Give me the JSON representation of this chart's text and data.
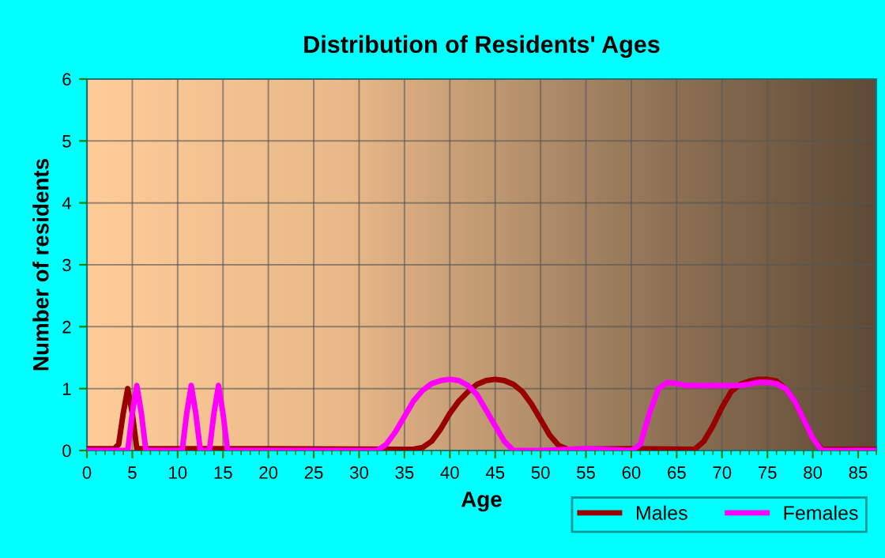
{
  "chart_data": {
    "type": "line",
    "title": "Distribution of Residents' Ages",
    "xlabel": "Age",
    "ylabel": "Number of residents",
    "xlim": [
      0,
      87
    ],
    "xticks": [
      0,
      5,
      10,
      15,
      20,
      25,
      30,
      35,
      40,
      45,
      50,
      55,
      60,
      65,
      70,
      75,
      80,
      85
    ],
    "ylim": [
      0,
      6
    ],
    "yticks": [
      0,
      1,
      2,
      3,
      4,
      5,
      6
    ],
    "grid": true,
    "legend": "bottom right",
    "series": [
      {
        "name": "Males",
        "color": "#990000",
        "x": [
          0,
          3,
          3.5,
          4,
          4.5,
          5,
          5.5,
          6,
          20,
          36,
          37,
          38,
          39,
          40,
          41,
          42,
          43,
          44,
          45,
          46,
          47,
          48,
          49,
          50,
          51,
          52,
          53,
          60,
          67,
          68,
          69,
          70,
          71,
          72,
          73,
          74,
          75,
          76,
          77,
          78,
          79,
          80,
          81,
          87
        ],
        "values": [
          0.03,
          0.03,
          0.1,
          0.6,
          1.0,
          0.6,
          0.03,
          0.03,
          0.03,
          0.02,
          0.05,
          0.15,
          0.35,
          0.6,
          0.8,
          0.95,
          1.07,
          1.13,
          1.15,
          1.13,
          1.07,
          0.95,
          0.75,
          0.5,
          0.25,
          0.08,
          0.02,
          0.03,
          0.02,
          0.15,
          0.4,
          0.7,
          0.95,
          1.07,
          1.12,
          1.15,
          1.15,
          1.12,
          1.0,
          0.8,
          0.5,
          0.2,
          0.02,
          0.02
        ]
      },
      {
        "name": "Females",
        "color": "#ff00ff",
        "x": [
          0,
          4.5,
          5,
          5.5,
          6,
          6.5,
          10.5,
          11,
          11.5,
          12,
          12.5,
          13.5,
          14,
          14.5,
          15,
          15.5,
          20,
          32,
          33,
          34,
          35,
          36,
          37,
          38,
          39,
          40,
          41,
          42,
          43,
          44,
          45,
          46,
          47,
          50,
          55,
          60,
          61,
          62,
          63,
          64,
          65,
          66,
          68,
          70,
          72,
          73,
          74,
          75,
          76,
          77,
          78,
          79,
          80,
          81,
          87
        ],
        "values": [
          0.0,
          0.0,
          0.6,
          1.05,
          0.6,
          0.0,
          0.0,
          0.6,
          1.05,
          0.6,
          0.0,
          0.0,
          0.6,
          1.05,
          0.6,
          0.0,
          0.0,
          0.0,
          0.1,
          0.3,
          0.55,
          0.8,
          0.97,
          1.08,
          1.13,
          1.15,
          1.13,
          1.05,
          0.9,
          0.65,
          0.4,
          0.15,
          0.0,
          0.0,
          0.03,
          0.0,
          0.1,
          0.6,
          1.0,
          1.1,
          1.08,
          1.05,
          1.05,
          1.05,
          1.05,
          1.07,
          1.1,
          1.1,
          1.08,
          1.0,
          0.8,
          0.5,
          0.2,
          0.0,
          0.0
        ]
      }
    ]
  }
}
